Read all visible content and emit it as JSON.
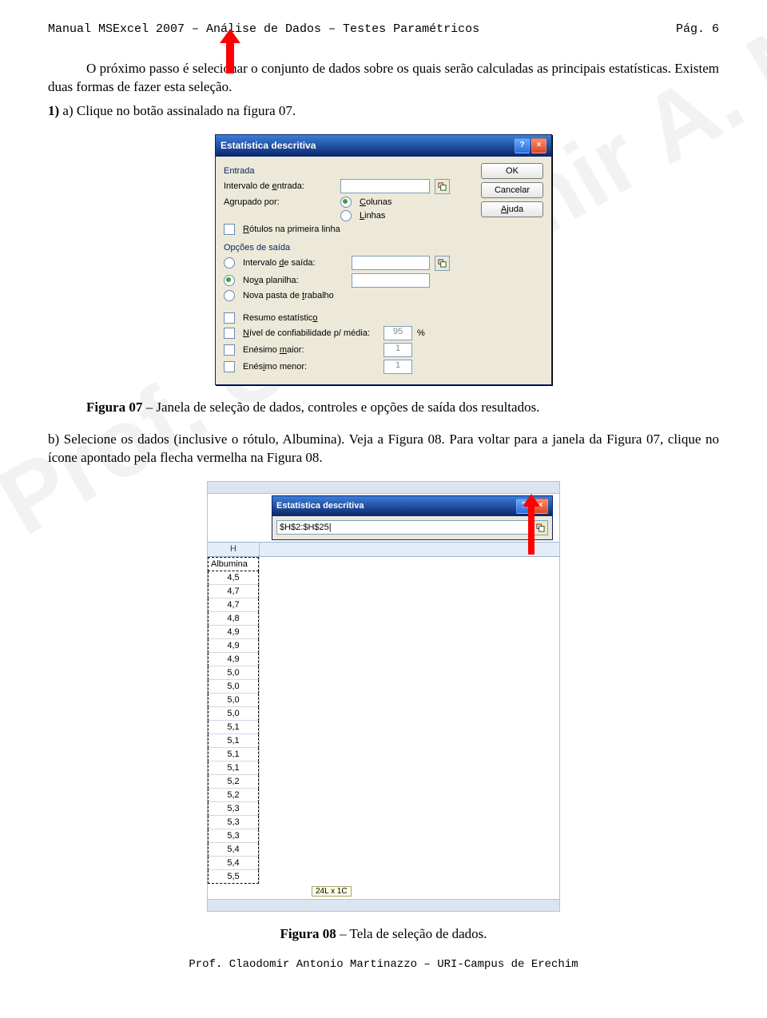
{
  "header": {
    "left": "Manual MSExcel 2007 – Análise de Dados – Testes Paramétricos",
    "right": "Pág.   6"
  },
  "paragraphs": {
    "p1": "O próximo passo é selecionar o conjunto de dados sobre os quais serão calculadas as principais estatísticas. Existem duas formas de fazer esta seleção.",
    "p2_prefix": "1)",
    "p2": " a) Clique no botão assinalado na figura 07.",
    "fig07_caption_bold": "Figura 07",
    "fig07_caption": " – Janela de seleção de dados, controles e opções de saída dos resultados.",
    "p3": "b) Selecione os dados (inclusive o rótulo, Albumina). Veja a Figura 08. Para voltar para a janela da Figura 07, clique no ícone apontado pela flecha vermelha na Figura 08.",
    "fig08_caption_bold": "Figura 08",
    "fig08_caption": " – Tela de seleção de dados."
  },
  "dialog": {
    "title": "Estatística descritiva",
    "section_input": "Entrada",
    "lbl_intervalo_entrada": "Intervalo de entrada:",
    "lbl_agrupado": "Agrupado por:",
    "radio_colunas": "Colunas",
    "radio_linhas": "Linhas",
    "chk_rotulos": "Rótulos na primeira linha",
    "section_output": "Opções de saída",
    "radio_intervalo_saida": "Intervalo de saída:",
    "radio_nova_planilha": "Nova planilha:",
    "radio_nova_pasta": "Nova pasta de trabalho",
    "chk_resumo": "Resumo estatístico",
    "chk_nivel": "Nível de confiabilidade p/ média:",
    "chk_enesimo_maior": "Enésimo maior:",
    "chk_enesimo_menor": "Enésimo menor:",
    "val_conf": "95",
    "pct": "%",
    "val_one_a": "1",
    "val_one_b": "1",
    "btn_ok": "OK",
    "btn_cancel": "Cancelar",
    "btn_help": "Ajuda"
  },
  "fig08": {
    "title": "Estatística descritiva",
    "range_input": "$H$2:$H$25|",
    "col_letter": "H",
    "header_cell": "Albumina",
    "selection_label": "24L x 1C",
    "values": [
      "4,5",
      "4,7",
      "4,7",
      "4,8",
      "4,9",
      "4,9",
      "4,9",
      "5,0",
      "5,0",
      "5,0",
      "5,0",
      "5,1",
      "5,1",
      "5,1",
      "5,1",
      "5,2",
      "5,2",
      "5,3",
      "5,3",
      "5,3",
      "5,4",
      "5,4",
      "5,5"
    ]
  },
  "colors": {
    "titlebar_start": "#3c7fd9",
    "titlebar_end": "#0a246a",
    "dialog_bg": "#ece9d8",
    "arrow_red": "#ff0000",
    "section_blue": "#0a246a"
  },
  "footer": "Prof. Claodomir Antonio Martinazzo – URI-Campus de Erechim",
  "watermark": "Prof. Claodomir A. Martinazzo"
}
